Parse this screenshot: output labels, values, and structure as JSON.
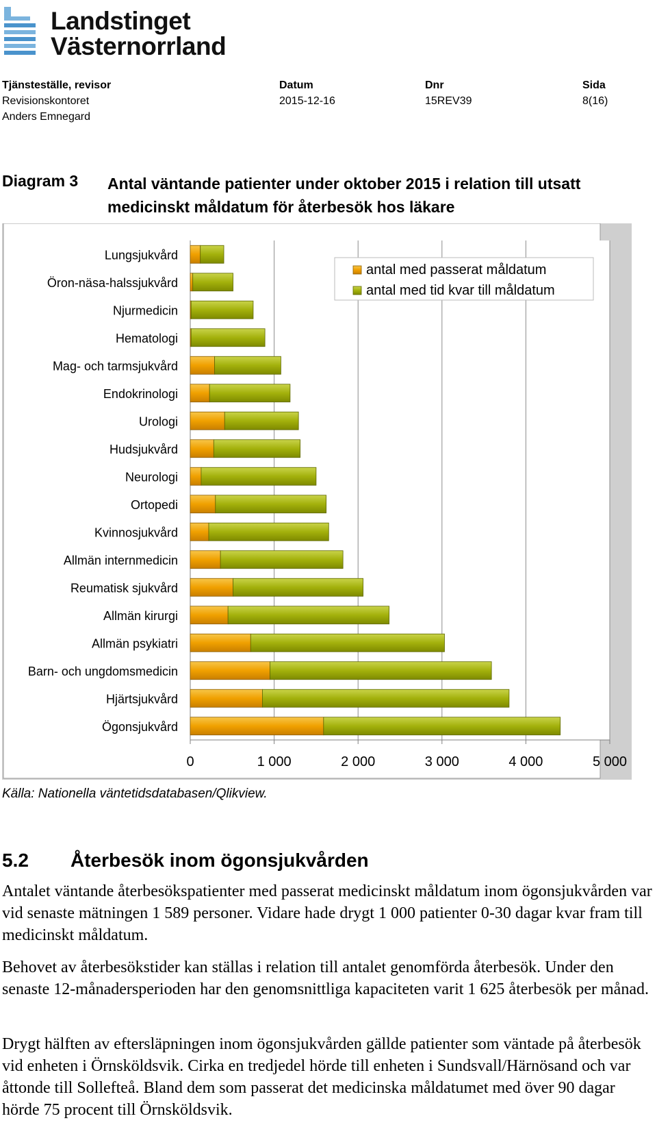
{
  "logo": {
    "line1": "Landstinget",
    "line2": "Västernorrland"
  },
  "header": {
    "col1_label": "Tjänsteställe, revisor",
    "col1_line1": "Revisionskontoret",
    "col1_line2": "Anders Emnegard",
    "col2_label": "Datum",
    "col2_value": "2015-12-16",
    "col3_label": "Dnr",
    "col3_value": "15REV39",
    "col4_label": "Sida",
    "col4_value": "8(16)"
  },
  "diagram": {
    "number": "Diagram 3",
    "title": "Antal väntande patienter under oktober 2015 i relation till utsatt medicinskt måldatum för återbesök hos läkare"
  },
  "chart_data": {
    "type": "bar",
    "orientation": "horizontal",
    "stacked": true,
    "categories": [
      "Lungsjukvård",
      "Öron-näsa-halssjukvård",
      "Njurmedicin",
      "Hematologi",
      "Mag- och tarmsjukvård",
      "Endokrinologi",
      "Urologi",
      "Hudsjukvård",
      "Neurologi",
      "Ortopedi",
      "Kvinnosjukvård",
      "Allmän internmedicin",
      "Reumatisk sjukvård",
      "Allmän kirurgi",
      "Allmän psykiatri",
      "Barn- och ungdomsmedicin",
      "Hjärtsjukvård",
      "Ögonsjukvård"
    ],
    "series": [
      {
        "name": "antal med passerat måldatum",
        "color": "#F0A000",
        "values": [
          120,
          30,
          10,
          10,
          290,
          230,
          410,
          280,
          130,
          300,
          220,
          360,
          510,
          450,
          720,
          950,
          860,
          1589
        ]
      },
      {
        "name": "antal med tid kvar till måldatum",
        "color": "#A3B10C",
        "values": [
          280,
          480,
          740,
          880,
          790,
          960,
          880,
          1030,
          1370,
          1320,
          1430,
          1460,
          1550,
          1920,
          2310,
          2640,
          2940,
          2821
        ]
      }
    ],
    "xlim": [
      0,
      5000
    ],
    "xticks": [
      "0",
      "1 000",
      "2 000",
      "3 000",
      "4 000",
      "5 000"
    ],
    "grid": "vertical",
    "legend_position": "top-right"
  },
  "source": "Källa: Nationella väntetidsdatabasen/Qlikview.",
  "section": {
    "number": "5.2",
    "title": "Återbesök inom ögonsjukvården"
  },
  "paragraphs": [
    "Antalet väntande återbesökspatienter med passerat medicinskt måldatum inom ögonsjukvården var vid senaste mätningen 1 589 personer. Vidare hade drygt 1 000 patienter 0-30 dagar kvar fram till medicinskt måldatum.",
    "Behovet av återbesökstider kan ställas i relation till antalet genomförda återbesök. Under den senaste 12-månadersperioden har den genomsnittliga kapaciteten varit 1 625 återbesök per månad.",
    "Drygt hälften av eftersläpningen inom ögonsjukvården gällde patienter som väntade på återbesök vid enheten i Örnsköldsvik. Cirka en tredjedel hörde till enheten i Sundsvall/Härnösand och var åttonde till Sollefteå. Bland dem som passerat det medicinska måldatumet med över 90 dagar hörde 75 procent till Örnsköldsvik."
  ]
}
